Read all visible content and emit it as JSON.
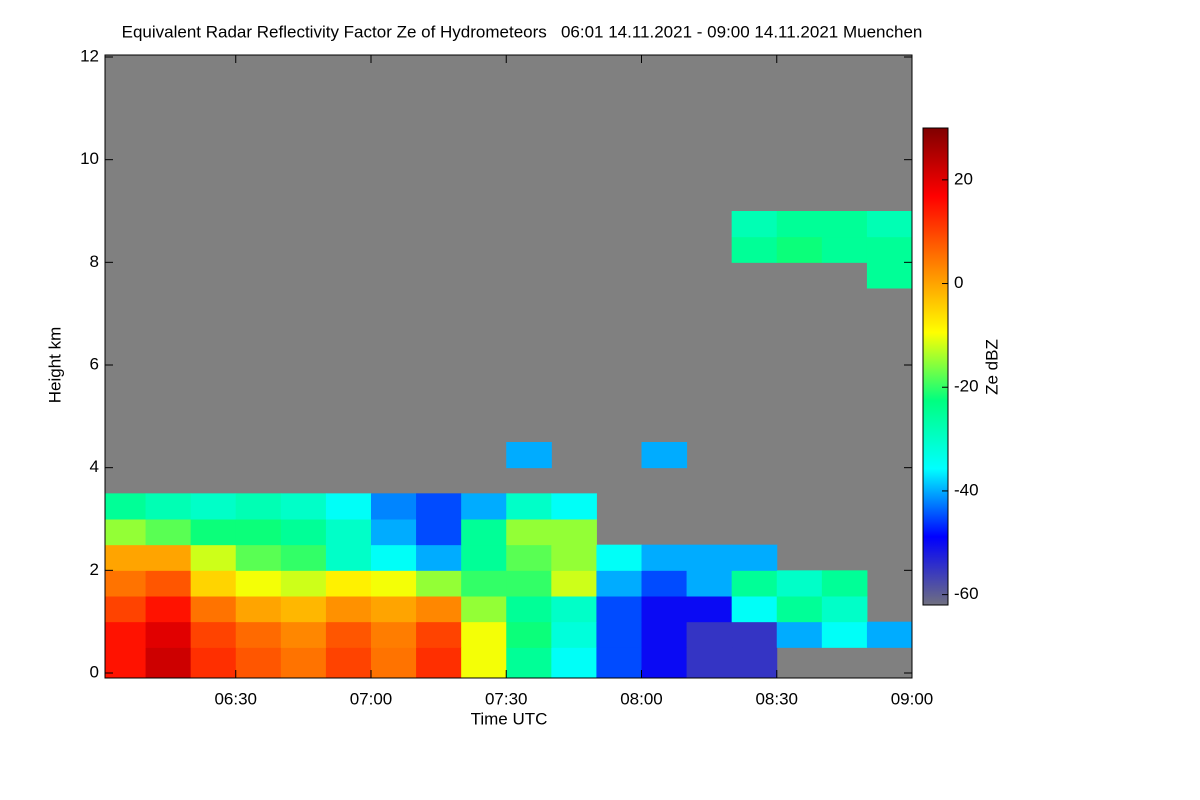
{
  "chart_data": {
    "type": "heatmap",
    "title": "Equivalent Radar Reflectivity Factor Ze of Hydrometeors   06:01 14.11.2021 - 09:00 14.11.2021 Muenchen",
    "x_label": "Time UTC",
    "y_label": "Height km",
    "colorbar_label": "Ze dBZ",
    "x_bins": [
      360,
      370,
      380,
      390,
      400,
      410,
      420,
      430,
      440,
      450,
      460,
      470,
      480,
      490,
      500,
      510,
      520,
      530,
      540
    ],
    "y_bins": [
      0,
      0.5,
      1,
      1.5,
      2,
      2.5,
      3,
      3.5,
      4,
      4.5,
      5,
      5.5,
      6,
      6.5,
      7,
      7.5,
      8,
      8.5,
      9
    ],
    "z": [
      [
        15,
        22,
        12,
        8,
        5,
        10,
        5,
        12,
        -10,
        -25,
        -35,
        -45,
        -50,
        -55,
        -55,
        null,
        null,
        null
      ],
      [
        15,
        20,
        10,
        6,
        3,
        8,
        4,
        10,
        -10,
        -22,
        -32,
        -45,
        -50,
        -55,
        -55,
        -40,
        -35,
        -40
      ],
      [
        10,
        15,
        5,
        0,
        -2,
        2,
        0,
        3,
        -15,
        -25,
        -30,
        -45,
        -50,
        -50,
        -35,
        -25,
        -30,
        null
      ],
      [
        5,
        8,
        -5,
        -10,
        -12,
        -8,
        -10,
        -15,
        -20,
        -20,
        -12,
        -40,
        -45,
        -40,
        -25,
        -30,
        -25,
        null
      ],
      [
        0,
        0,
        -12,
        -18,
        -20,
        -30,
        -35,
        -40,
        -25,
        -18,
        -15,
        -35,
        -40,
        -40,
        -40,
        null,
        null,
        null
      ],
      [
        -15,
        -18,
        -22,
        -22,
        -25,
        -30,
        -40,
        -45,
        -25,
        -15,
        -15,
        null,
        null,
        null,
        null,
        null,
        null,
        null
      ],
      [
        -25,
        -28,
        -30,
        -28,
        -30,
        -35,
        -42,
        -45,
        -40,
        -30,
        -35,
        null,
        null,
        null,
        null,
        null,
        null,
        null
      ],
      [
        null,
        null,
        null,
        null,
        null,
        null,
        null,
        null,
        null,
        null,
        null,
        null,
        null,
        null,
        null,
        null,
        null,
        null
      ],
      [
        null,
        null,
        null,
        null,
        null,
        null,
        null,
        null,
        null,
        -40,
        null,
        null,
        -40,
        null,
        null,
        null,
        null,
        null
      ],
      [
        null,
        null,
        null,
        null,
        null,
        null,
        null,
        null,
        null,
        null,
        null,
        null,
        null,
        null,
        null,
        null,
        null,
        null
      ],
      [
        null,
        null,
        null,
        null,
        null,
        null,
        null,
        null,
        null,
        null,
        null,
        null,
        null,
        null,
        null,
        null,
        null,
        null
      ],
      [
        null,
        null,
        null,
        null,
        null,
        null,
        null,
        null,
        null,
        null,
        null,
        null,
        null,
        null,
        null,
        null,
        null,
        null
      ],
      [
        null,
        null,
        null,
        null,
        null,
        null,
        null,
        null,
        null,
        null,
        null,
        null,
        null,
        null,
        null,
        null,
        null,
        null
      ],
      [
        null,
        null,
        null,
        null,
        null,
        null,
        null,
        null,
        null,
        null,
        null,
        null,
        null,
        null,
        null,
        null,
        null,
        null
      ],
      [
        null,
        null,
        null,
        null,
        null,
        null,
        null,
        null,
        null,
        null,
        null,
        null,
        null,
        null,
        null,
        null,
        null,
        null
      ],
      [
        null,
        null,
        null,
        null,
        null,
        null,
        null,
        null,
        null,
        null,
        null,
        null,
        null,
        null,
        null,
        null,
        null,
        -25
      ],
      [
        null,
        null,
        null,
        null,
        null,
        null,
        null,
        null,
        null,
        null,
        null,
        null,
        null,
        null,
        -25,
        -22,
        -25,
        -25
      ],
      [
        null,
        null,
        null,
        null,
        null,
        null,
        null,
        null,
        null,
        null,
        null,
        null,
        null,
        null,
        -28,
        -25,
        -25,
        -28
      ]
    ],
    "xlim": [
      361,
      540
    ],
    "xticks": [
      {
        "value": 390,
        "label": "06:30"
      },
      {
        "value": 420,
        "label": "07:00"
      },
      {
        "value": 450,
        "label": "07:30"
      },
      {
        "value": 480,
        "label": "08:00"
      },
      {
        "value": 510,
        "label": "08:30"
      },
      {
        "value": 540,
        "label": "09:00"
      }
    ],
    "ylim": [
      0,
      12
    ],
    "yticks": [
      0,
      2,
      4,
      6,
      8,
      10,
      12
    ],
    "zlim": [
      -62,
      30
    ],
    "zticks": [
      -60,
      -40,
      -20,
      0,
      20
    ],
    "colormap": [
      "#707080",
      "#0000ff",
      "#00ffff",
      "#00ff80",
      "#ffff00",
      "#ff8000",
      "#ff0000",
      "#800000"
    ],
    "background": "#808080"
  }
}
